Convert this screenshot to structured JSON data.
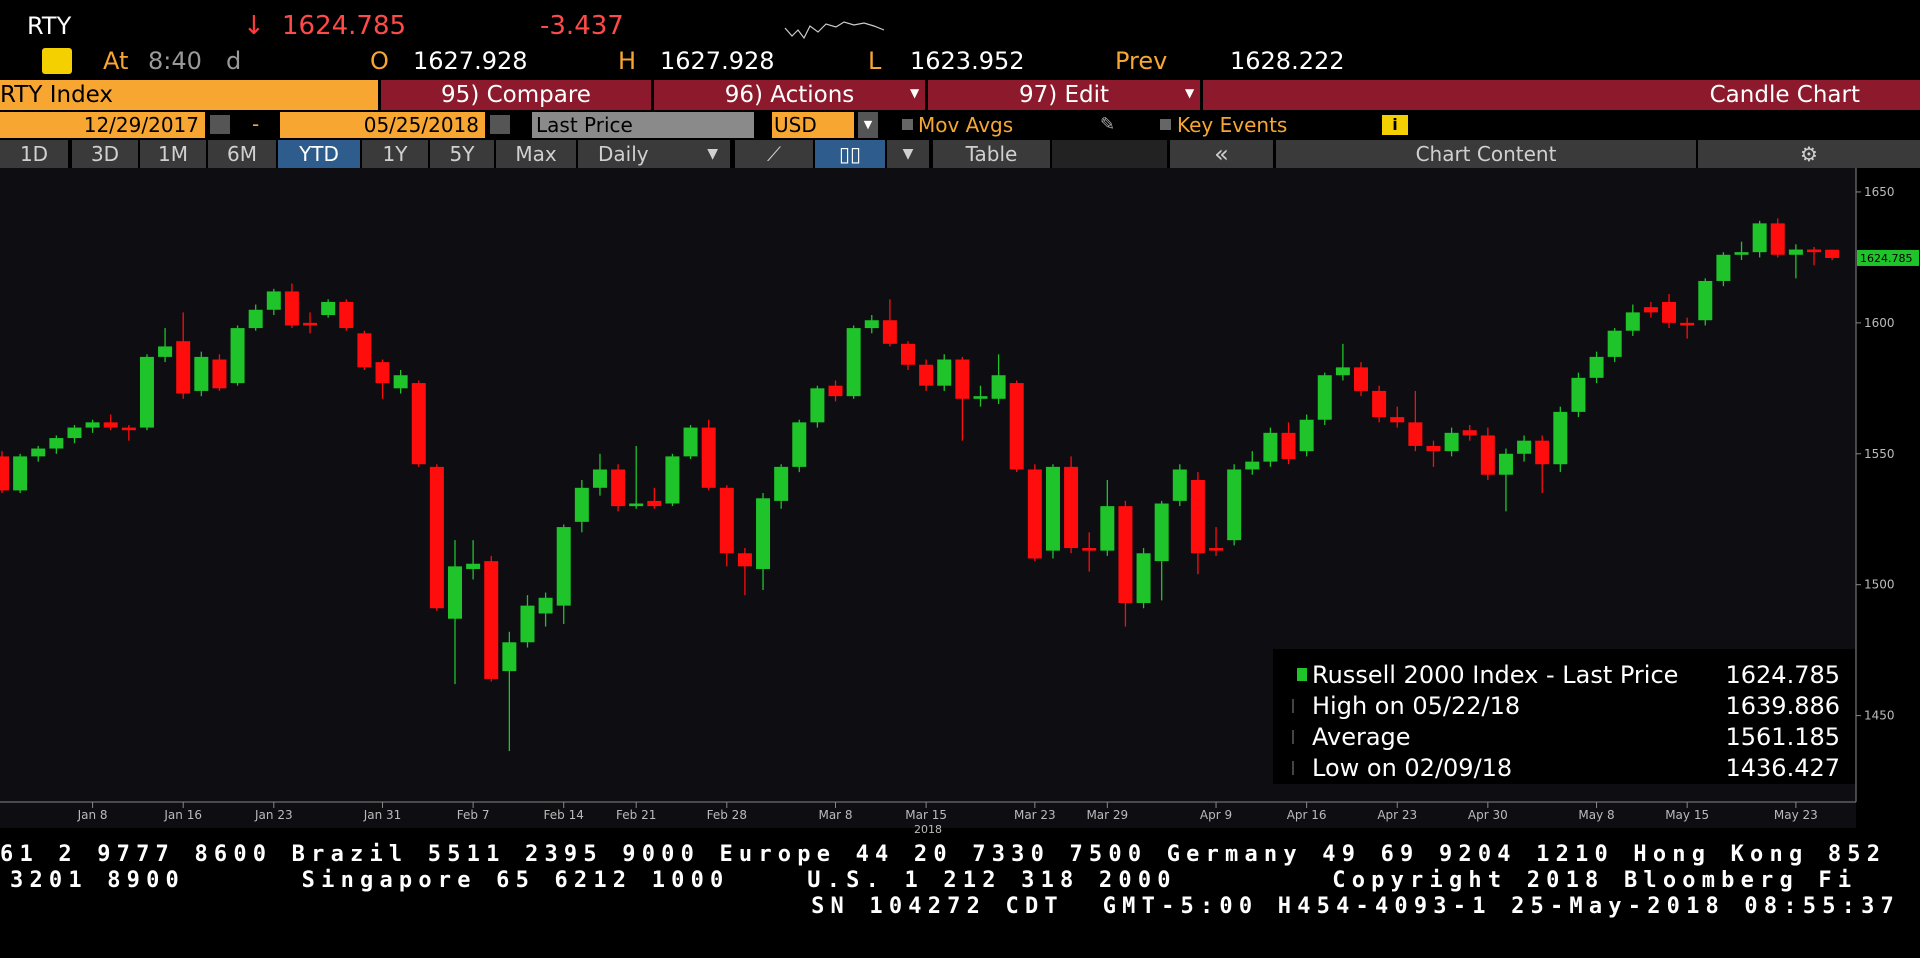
{
  "header": {
    "ticker": "RTY",
    "arrow": "↓",
    "last": 1624.785,
    "change": -3.437,
    "at": "At",
    "time": "8:40",
    "flag": "d",
    "open_label": "O",
    "open": 1627.928,
    "high_label": "H",
    "high": 1627.928,
    "low_label": "L",
    "low": 1623.952,
    "prev_label": "Prev",
    "prev": 1628.222
  },
  "toolbar": {
    "security": "RTY Index",
    "compare": "95) Compare",
    "actions": "96) Actions",
    "edit": "97) Edit",
    "view": "Candle Chart",
    "start_date": "12/29/2017",
    "dash": "-",
    "end_date": "05/25/2018",
    "field": "Last Price",
    "currency": "USD",
    "mov_avgs": "Mov Avgs",
    "key_events": "Key Events",
    "ranges": [
      "1D",
      "3D",
      "1M",
      "6M",
      "YTD",
      "1Y",
      "5Y",
      "Max"
    ],
    "period": "Daily",
    "table": "Table",
    "back": "«",
    "chart_content": "Chart Content"
  },
  "chart_data": {
    "type": "candlestick",
    "categories": [
      null,
      null,
      null,
      null,
      null,
      "Jan 8",
      null,
      null,
      null,
      null,
      "Jan 16",
      null,
      null,
      null,
      null,
      "Jan 23",
      null,
      null,
      null,
      null,
      null,
      "Jan 31",
      null,
      null,
      null,
      null,
      "Feb 7",
      null,
      null,
      null,
      null,
      "Feb 14",
      null,
      null,
      null,
      "Feb 21",
      null,
      null,
      null,
      null,
      "Feb 28",
      null,
      null,
      null,
      null,
      null,
      "Mar 8",
      null,
      null,
      null,
      null,
      "Mar 15",
      null,
      null,
      null,
      null,
      null,
      "Mar 23",
      null,
      null,
      null,
      "Mar 29",
      null,
      null,
      null,
      null,
      null,
      "Apr 9",
      null,
      null,
      null,
      null,
      "Apr 16",
      null,
      null,
      null,
      null,
      "Apr 23",
      null,
      null,
      null,
      null,
      "Apr 30",
      null,
      null,
      null,
      null,
      null,
      "May 8",
      null,
      null,
      null,
      null,
      "May 15",
      null,
      null,
      null,
      null,
      null,
      "May 23",
      null,
      null
    ],
    "open": [
      1549,
      1536,
      1549,
      1552,
      1556,
      1560,
      1562,
      1560,
      1560,
      1587,
      1593,
      1574,
      1586,
      1577,
      1598,
      1605,
      1612,
      1600,
      1603,
      1608,
      1596,
      1585,
      1575,
      1577,
      1545,
      1487,
      1506,
      1509,
      1467,
      1478,
      1489,
      1492,
      1524,
      1537,
      1544,
      1530,
      1532,
      1531,
      1549,
      1560,
      1537,
      1512,
      1506,
      1532,
      1545,
      1562,
      1576,
      1572,
      1598,
      1601,
      1592,
      1584,
      1576,
      1586,
      1571,
      1571,
      1577,
      1544,
      1513,
      1545,
      1514,
      1513,
      1530,
      1493,
      1509,
      1532,
      1540,
      1514,
      1517,
      1544,
      1547,
      1558,
      1551,
      1563,
      1580,
      1583,
      1574,
      1564,
      1562,
      1553,
      1551,
      1559,
      1557,
      1542,
      1550,
      1555,
      1546,
      1566,
      1579,
      1587,
      1597,
      1606,
      1608,
      1600,
      1601,
      1616,
      1626,
      1627,
      1638,
      1626,
      1628,
      1627.928
    ],
    "high": [
      1551,
      1550,
      1553,
      1557,
      1561,
      1563,
      1565,
      1561,
      1588,
      1598,
      1604,
      1589,
      1588,
      1599,
      1607,
      1613,
      1615,
      1604,
      1609,
      1609,
      1597,
      1586,
      1582,
      1578,
      1546,
      1517,
      1517,
      1511,
      1482,
      1496,
      1497,
      1523,
      1540,
      1550,
      1546,
      1553,
      1537,
      1550,
      1561,
      1563,
      1538,
      1514,
      1535,
      1546,
      1563,
      1576,
      1578,
      1599,
      1603,
      1609,
      1593,
      1586,
      1588,
      1587,
      1576,
      1588,
      1578,
      1546,
      1546,
      1549,
      1520,
      1540,
      1532,
      1514,
      1532,
      1546,
      1543,
      1522,
      1546,
      1551,
      1560,
      1562,
      1565,
      1581,
      1592,
      1585,
      1576,
      1568,
      1574,
      1555,
      1560,
      1561,
      1560,
      1552,
      1557,
      1557,
      1568,
      1581,
      1589,
      1598,
      1607,
      1608,
      1611,
      1602,
      1617,
      1627,
      1631,
      1639,
      1639.886,
      1630,
      1629,
      1627.928
    ],
    "low": [
      1535,
      1535,
      1547,
      1550,
      1554,
      1558,
      1559,
      1555,
      1559,
      1585,
      1571,
      1572,
      1574,
      1576,
      1597,
      1603,
      1598,
      1596,
      1602,
      1597,
      1582,
      1571,
      1573,
      1545,
      1490,
      1462,
      1502,
      1463,
      1436.427,
      1476,
      1484,
      1485,
      1520,
      1534,
      1528,
      1529,
      1529,
      1530,
      1548,
      1536,
      1507,
      1496,
      1498,
      1529,
      1543,
      1560,
      1570,
      1571,
      1596,
      1591,
      1582,
      1574,
      1574,
      1555,
      1568,
      1569,
      1543,
      1509,
      1510,
      1512,
      1505,
      1511,
      1484,
      1491,
      1494,
      1530,
      1504,
      1511,
      1515,
      1542,
      1545,
      1546,
      1549,
      1561,
      1578,
      1572,
      1562,
      1560,
      1551,
      1545,
      1549,
      1555,
      1540,
      1528,
      1547,
      1535,
      1543,
      1564,
      1577,
      1585,
      1595,
      1602,
      1598,
      1594,
      1599,
      1614,
      1624,
      1625,
      1625,
      1617,
      1622,
      1623.952
    ],
    "close": [
      1536,
      1549,
      1552,
      1556,
      1560,
      1562,
      1560,
      1559,
      1587,
      1591,
      1573,
      1587,
      1575,
      1598,
      1605,
      1612,
      1599,
      1599,
      1608,
      1598,
      1583,
      1577,
      1580,
      1546,
      1491,
      1507,
      1508,
      1464,
      1478,
      1492,
      1495,
      1522,
      1537,
      1544,
      1530,
      1531,
      1530,
      1549,
      1560,
      1537,
      1512,
      1507,
      1533,
      1545,
      1562,
      1575,
      1572,
      1598,
      1601,
      1592,
      1584,
      1576,
      1586,
      1571,
      1572,
      1580,
      1544,
      1510,
      1545,
      1514,
      1513,
      1530,
      1493,
      1512,
      1531,
      1544,
      1512,
      1513,
      1544,
      1547,
      1558,
      1548,
      1563,
      1580,
      1583,
      1574,
      1564,
      1562,
      1553,
      1551,
      1558,
      1557,
      1542,
      1550,
      1555,
      1546,
      1566,
      1579,
      1587,
      1597,
      1604,
      1604,
      1600,
      1599,
      1616,
      1626,
      1627,
      1638,
      1626,
      1628,
      1627,
      1624.785
    ],
    "up_color": "#1fc42a",
    "down_color": "#ff0d0d",
    "ylim": [
      1417,
      1658
    ],
    "yticks": [
      1450,
      1500,
      1550,
      1600,
      1650
    ],
    "x_year_label": "2018",
    "legend": [
      {
        "label": "Russell 2000 Index - Last Price",
        "value": 1624.785
      },
      {
        "label": "High on 05/22/18",
        "value": 1639.886
      },
      {
        "label": "Average",
        "value": 1561.185
      },
      {
        "label": "Low on 02/09/18",
        "value": 1436.427
      }
    ]
  },
  "footer": {
    "line1": "61 2 9777 8600 Brazil 5511 2395 9000 Europe 44 20 7330 7500 Germany 49 69 9204 1210 Hong Kong 852",
    "line2": "3201 8900      Singapore 65 6212 1000    U.S. 1 212 318 2000        Copyright 2018 Bloomberg Fi",
    "line3": "SN 104272 CDT  GMT-5:00 H454-4093-1 25-May-2018 08:55:37"
  }
}
